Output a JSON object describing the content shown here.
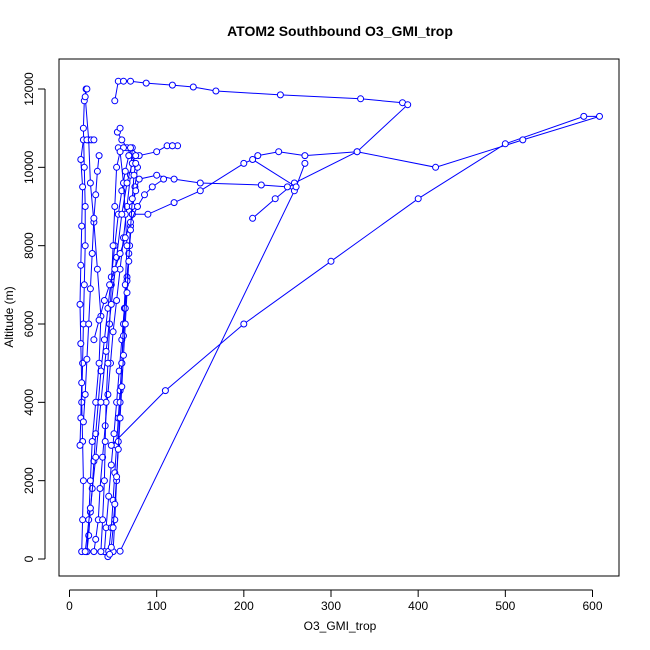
{
  "chart_data": {
    "type": "line",
    "title": "ATOM2 Southbound O3_GMI_trop",
    "xlabel": "O3_GMI_trop",
    "ylabel": "Altitude (m)",
    "xlim": [
      0,
      610
    ],
    "ylim": [
      0,
      12300
    ],
    "x_ticks": [
      0,
      100,
      200,
      300,
      400,
      500,
      600
    ],
    "y_ticks": [
      0,
      2000,
      4000,
      6000,
      8000,
      10000,
      12000
    ],
    "x_tick_labels": [
      "0",
      "100",
      "200",
      "300",
      "400",
      "500",
      "600"
    ],
    "y_tick_labels": [
      "0",
      "2000",
      "4000",
      "6000",
      "8000",
      "10000",
      "12000"
    ],
    "grid": false,
    "marker": "open-circle",
    "series_color": "#0000FF",
    "series": [
      {
        "points": [
          [
            20,
            190
          ],
          [
            22,
            600
          ],
          [
            24,
            1200
          ],
          [
            26,
            1800
          ],
          [
            28,
            2500
          ],
          [
            30,
            3200
          ],
          [
            33,
            4000
          ],
          [
            36,
            4800
          ],
          [
            40,
            5600
          ],
          [
            44,
            6400
          ],
          [
            48,
            7200
          ],
          [
            52,
            8000
          ],
          [
            56,
            8800
          ],
          [
            60,
            9400
          ],
          [
            64,
            9900
          ],
          [
            68,
            10300
          ],
          [
            72,
            10500
          ],
          [
            70,
            9800
          ],
          [
            66,
            9000
          ],
          [
            62,
            8200
          ],
          [
            58,
            7400
          ],
          [
            54,
            6600
          ],
          [
            50,
            5800
          ],
          [
            47,
            5000
          ],
          [
            44,
            4200
          ],
          [
            41,
            3400
          ],
          [
            38,
            2600
          ],
          [
            35,
            1800
          ],
          [
            33,
            1000
          ],
          [
            30,
            500
          ],
          [
            28,
            190
          ],
          [
            40,
            190
          ],
          [
            42,
            800
          ],
          [
            45,
            1600
          ],
          [
            48,
            2400
          ],
          [
            51,
            3200
          ],
          [
            54,
            4000
          ],
          [
            57,
            4800
          ],
          [
            60,
            5600
          ],
          [
            63,
            6400
          ],
          [
            66,
            7200
          ],
          [
            69,
            8000
          ],
          [
            72,
            8800
          ],
          [
            75,
            9500
          ],
          [
            78,
            10000
          ],
          [
            66,
            10500
          ],
          [
            60,
            10700
          ],
          [
            55,
            10900
          ],
          [
            58,
            11000
          ]
        ]
      },
      {
        "points": [
          [
            14,
            190
          ],
          [
            15,
            1000
          ],
          [
            16,
            2000
          ],
          [
            15,
            3000
          ],
          [
            14,
            4000
          ],
          [
            15,
            5000
          ],
          [
            16,
            6000
          ],
          [
            17,
            7000
          ],
          [
            18,
            8000
          ],
          [
            18,
            9000
          ],
          [
            17,
            10000
          ],
          [
            16,
            11000
          ],
          [
            17,
            11700
          ],
          [
            19,
            12000
          ],
          [
            20,
            12000
          ],
          [
            18,
            11800
          ],
          [
            22,
            10700
          ],
          [
            24,
            9600
          ],
          [
            28,
            8600
          ],
          [
            32,
            7400
          ],
          [
            36,
            6200
          ],
          [
            34,
            5000
          ],
          [
            30,
            4000
          ],
          [
            26,
            3000
          ],
          [
            24,
            2000
          ],
          [
            22,
            1000
          ],
          [
            20,
            190
          ]
        ]
      },
      {
        "points": [
          [
            12,
            2900
          ],
          [
            13,
            3600
          ],
          [
            14,
            4500
          ],
          [
            13,
            5500
          ],
          [
            12,
            6500
          ],
          [
            13,
            7500
          ],
          [
            14,
            8500
          ],
          [
            15,
            9500
          ],
          [
            13,
            10200
          ],
          [
            16,
            10700
          ],
          [
            20,
            10700
          ],
          [
            25,
            10700
          ],
          [
            28,
            10700
          ]
        ]
      },
      {
        "points": [
          [
            52,
            11700
          ],
          [
            56,
            12200
          ],
          [
            62,
            12200
          ],
          [
            70,
            12200
          ],
          [
            88,
            12150
          ],
          [
            118,
            12100
          ],
          [
            142,
            12050
          ],
          [
            168,
            11950
          ],
          [
            242,
            11850
          ],
          [
            334,
            11750
          ],
          [
            382,
            11650
          ],
          [
            388,
            11600
          ],
          [
            330,
            10400
          ],
          [
            258,
            9600
          ],
          [
            236,
            9200
          ],
          [
            210,
            8700
          ]
        ]
      },
      {
        "points": [
          [
            45,
            200
          ],
          [
            48,
            800
          ],
          [
            50,
            1500
          ],
          [
            52,
            2200
          ],
          [
            54,
            2900
          ],
          [
            56,
            3600
          ],
          [
            58,
            4300
          ],
          [
            60,
            5000
          ],
          [
            62,
            5700
          ],
          [
            64,
            6400
          ],
          [
            66,
            7100
          ],
          [
            68,
            7800
          ],
          [
            70,
            8500
          ],
          [
            72,
            9000
          ],
          [
            76,
            9400
          ],
          [
            80,
            9700
          ],
          [
            100,
            9800
          ],
          [
            120,
            9700
          ],
          [
            150,
            9600
          ],
          [
            220,
            9550
          ],
          [
            250,
            9500
          ],
          [
            258,
            9400
          ],
          [
            58,
            200
          ]
        ]
      },
      {
        "points": [
          [
            48,
            2900
          ],
          [
            110,
            4300
          ],
          [
            200,
            6000
          ],
          [
            300,
            7600
          ],
          [
            400,
            9200
          ],
          [
            500,
            10600
          ],
          [
            590,
            11300
          ],
          [
            608,
            11300
          ],
          [
            520,
            10700
          ],
          [
            420,
            10000
          ],
          [
            330,
            10400
          ],
          [
            270,
            10300
          ],
          [
            240,
            10400
          ],
          [
            216,
            10300
          ]
        ]
      },
      {
        "points": [
          [
            56,
            10500
          ],
          [
            62,
            10500
          ],
          [
            70,
            10500
          ],
          [
            80,
            10300
          ],
          [
            100,
            10400
          ],
          [
            112,
            10550
          ],
          [
            118,
            10550
          ],
          [
            124,
            10550
          ],
          [
            118,
            10550
          ]
        ]
      },
      {
        "points": [
          [
            72,
            8800
          ],
          [
            90,
            8800
          ],
          [
            120,
            9100
          ],
          [
            150,
            9400
          ],
          [
            200,
            10100
          ],
          [
            210,
            10200
          ],
          [
            260,
            9500
          ],
          [
            270,
            10100
          ]
        ]
      },
      {
        "points": [
          [
            36,
            190
          ],
          [
            38,
            1000
          ],
          [
            40,
            2000
          ],
          [
            41,
            3000
          ],
          [
            42,
            4000
          ],
          [
            44,
            5000
          ],
          [
            46,
            6000
          ],
          [
            48,
            7000
          ],
          [
            50,
            8000
          ],
          [
            52,
            9000
          ],
          [
            54,
            10000
          ],
          [
            58,
            10400
          ],
          [
            62,
            9600
          ],
          [
            64,
            8800
          ],
          [
            66,
            8000
          ],
          [
            64,
            7000
          ],
          [
            62,
            6000
          ],
          [
            60,
            5000
          ],
          [
            58,
            4000
          ],
          [
            56,
            3000
          ],
          [
            54,
            2000
          ],
          [
            52,
            1000
          ],
          [
            50,
            190
          ]
        ]
      },
      {
        "points": [
          [
            18,
            190
          ],
          [
            24,
            1300
          ],
          [
            30,
            2600
          ],
          [
            36,
            4000
          ],
          [
            42,
            5300
          ],
          [
            48,
            6500
          ],
          [
            54,
            7700
          ],
          [
            60,
            8800
          ],
          [
            66,
            9600
          ],
          [
            72,
            10100
          ],
          [
            76,
            10300
          ]
        ]
      },
      {
        "points": [
          [
            28,
            5600
          ],
          [
            34,
            6100
          ],
          [
            40,
            6600
          ],
          [
            46,
            7000
          ],
          [
            52,
            7400
          ],
          [
            58,
            7800
          ],
          [
            64,
            8200
          ],
          [
            70,
            8600
          ],
          [
            78,
            9000
          ],
          [
            86,
            9300
          ],
          [
            95,
            9500
          ],
          [
            108,
            9700
          ]
        ]
      },
      {
        "points": [
          [
            16,
            3500
          ],
          [
            18,
            4200
          ],
          [
            20,
            5100
          ],
          [
            22,
            6000
          ],
          [
            24,
            6900
          ],
          [
            26,
            7800
          ],
          [
            28,
            8700
          ],
          [
            30,
            9300
          ],
          [
            32,
            9900
          ],
          [
            34,
            10300
          ]
        ]
      },
      {
        "points": [
          [
            44,
            60
          ],
          [
            46,
            120
          ],
          [
            48,
            300
          ],
          [
            50,
            800
          ],
          [
            52,
            1400
          ],
          [
            54,
            2100
          ],
          [
            56,
            2800
          ],
          [
            58,
            3600
          ],
          [
            60,
            4400
          ],
          [
            62,
            5200
          ],
          [
            64,
            6000
          ],
          [
            66,
            6800
          ],
          [
            68,
            7600
          ],
          [
            70,
            8400
          ],
          [
            72,
            9200
          ],
          [
            74,
            9800
          ],
          [
            76,
            10100
          ]
        ]
      }
    ]
  }
}
